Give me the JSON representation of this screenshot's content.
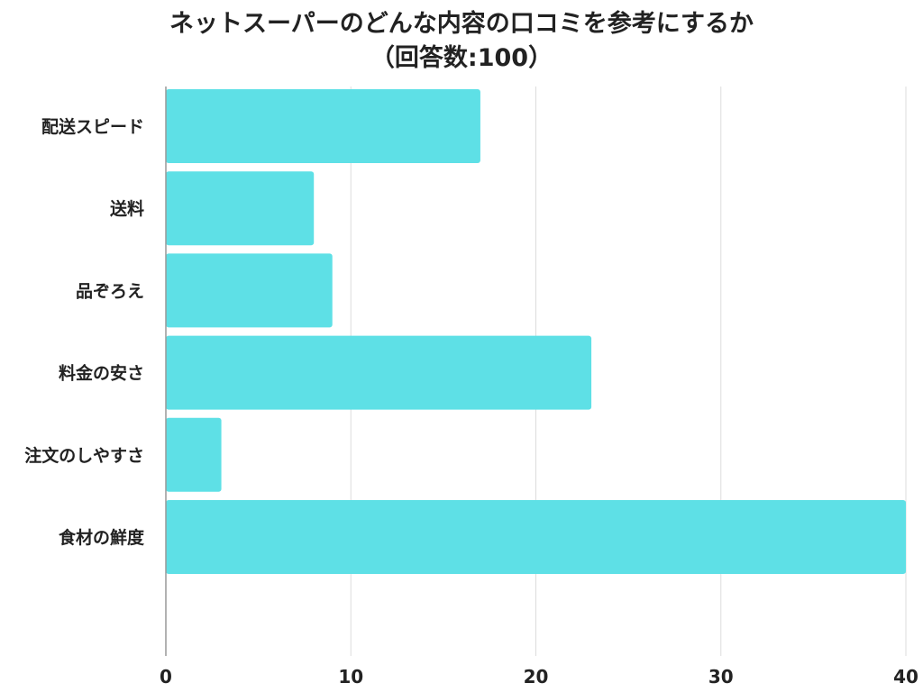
{
  "chart_data": {
    "type": "bar",
    "orientation": "horizontal",
    "title": "ネットスーパーのどんな内容の口コミを参考にするか",
    "subtitle": "（回答数:100）",
    "xlabel": "",
    "ylabel": "",
    "categories": [
      "配送スピード",
      "送料",
      "品ぞろえ",
      "料金の安さ",
      "注文のしやすさ",
      "食材の鮮度"
    ],
    "values": [
      17,
      8,
      9,
      23,
      3,
      40
    ],
    "xlim": [
      0,
      40
    ],
    "xticks": [
      0,
      10,
      20,
      30,
      40
    ],
    "grid": "vertical",
    "legend": "none",
    "colors": {
      "bar": "#5ee0e6",
      "grid": "#dddddd",
      "text": "#222222"
    }
  }
}
